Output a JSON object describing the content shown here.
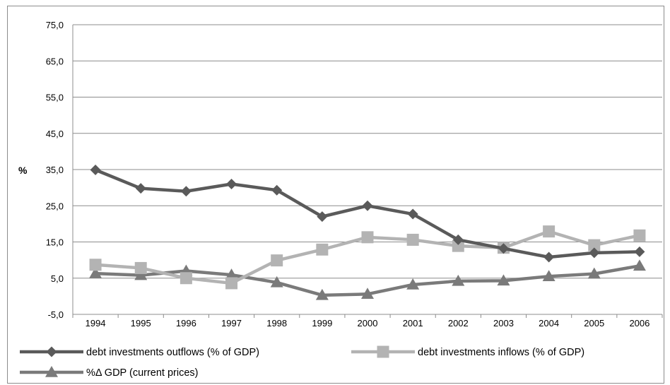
{
  "chart_data": {
    "type": "line",
    "title": "",
    "xlabel": "",
    "ylabel": "%",
    "ylim": [
      -5,
      75
    ],
    "yticks": [
      "75,0",
      "65,0",
      "55,0",
      "45,0",
      "35,0",
      "25,0",
      "15,0",
      "5,0",
      "-5,0"
    ],
    "ytick_values": [
      75,
      65,
      55,
      45,
      35,
      25,
      15,
      5,
      -5
    ],
    "categories": [
      "1994",
      "1995",
      "1996",
      "1997",
      "1998",
      "1999",
      "2000",
      "2001",
      "2002",
      "2003",
      "2004",
      "2005",
      "2006"
    ],
    "grid": true,
    "legend_position": "bottom",
    "series": [
      {
        "name": "debt investments outflows (% of GDP)",
        "marker": "diamond",
        "color": "#5a5a5a",
        "values": [
          34.9,
          29.8,
          29.0,
          31.0,
          29.3,
          22.0,
          25.0,
          22.7,
          15.6,
          13.2,
          10.8,
          12.0,
          12.3
        ]
      },
      {
        "name": "debt investments inflows (% of GDP)",
        "marker": "square",
        "color": "#b3b3b3",
        "values": [
          8.7,
          7.8,
          5.0,
          3.6,
          9.9,
          12.9,
          16.3,
          15.6,
          13.9,
          13.4,
          17.9,
          14.1,
          16.8
        ]
      },
      {
        "name": "%Δ GDP (current prices)",
        "marker": "triangle",
        "color": "#7a7a7a",
        "values": [
          6.3,
          5.8,
          7.0,
          5.9,
          3.8,
          0.3,
          0.6,
          3.2,
          4.2,
          4.3,
          5.5,
          6.2,
          8.4
        ]
      }
    ]
  }
}
